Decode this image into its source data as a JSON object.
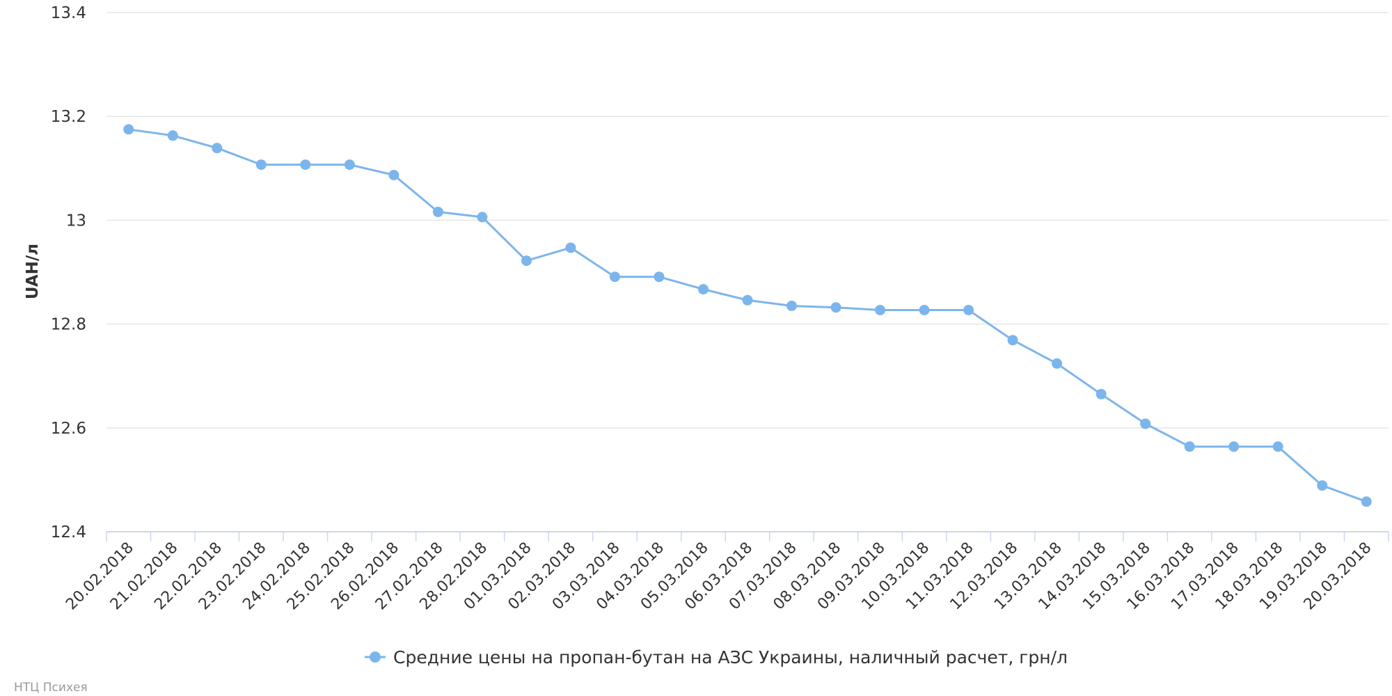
{
  "chart_data": {
    "type": "line",
    "ylabel": "UAH/л",
    "ylim": [
      12.4,
      13.4
    ],
    "yticks": [
      "13.4",
      "13.2",
      "13",
      "12.8",
      "12.6",
      "12.4"
    ],
    "grid": true,
    "legend_position": "bottom-center",
    "categories": [
      "20.02.2018",
      "21.02.2018",
      "22.02.2018",
      "23.02.2018",
      "24.02.2018",
      "25.02.2018",
      "26.02.2018",
      "27.02.2018",
      "28.02.2018",
      "01.03.2018",
      "02.03.2018",
      "03.03.2018",
      "04.03.2018",
      "05.03.2018",
      "06.03.2018",
      "07.03.2018",
      "08.03.2018",
      "09.03.2018",
      "10.03.2018",
      "11.03.2018",
      "12.03.2018",
      "13.03.2018",
      "14.03.2018",
      "15.03.2018",
      "16.03.2018",
      "17.03.2018",
      "18.03.2018",
      "19.03.2018",
      "20.03.2018"
    ],
    "series": [
      {
        "name": "Средние цены на пропан-бутан на АЗС Украины, наличный расчет, грн/л",
        "color": "#7cb5ec",
        "values": [
          13.175,
          13.163,
          13.139,
          13.107,
          13.107,
          13.107,
          13.087,
          13.016,
          13.006,
          12.922,
          12.947,
          12.891,
          12.891,
          12.867,
          12.846,
          12.835,
          12.832,
          12.827,
          12.827,
          12.827,
          12.769,
          12.724,
          12.665,
          12.608,
          12.564,
          12.564,
          12.564,
          12.489,
          12.458
        ]
      }
    ],
    "credit": "НТЦ Психея"
  }
}
